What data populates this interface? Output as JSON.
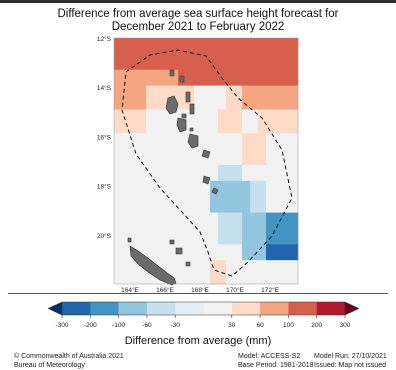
{
  "title_line1": "Difference from average sea surface height forecast for",
  "title_line2": "December 2021 to February 2022",
  "map": {
    "lat_ticks": [
      "12°S",
      "14°S",
      "16°S",
      "18°S",
      "20°S"
    ],
    "lon_ticks": [
      "164°E",
      "166°E",
      "168°E",
      "170°E",
      "172°E"
    ],
    "lon_range": [
      162.5,
      173.5
    ],
    "lat_range": [
      -12.0,
      -22.0
    ]
  },
  "colorbar": {
    "label": "Difference from average (mm)",
    "ticks": [
      "-300",
      "-200",
      "-100",
      "-60",
      "-30",
      "30",
      "60",
      "100",
      "200",
      "300"
    ],
    "colors": [
      "#2166ac",
      "#4393c3",
      "#92c5de",
      "#c6e0ef",
      "#e1eff7",
      "#f2f2f2",
      "#fddbc7",
      "#f4a582",
      "#d6604d",
      "#b2182b"
    ]
  },
  "footer": {
    "copyright": "© Commonwealth of Australia 2021",
    "bureau": "Bureau of Meteorology",
    "model": "Model: ACCESS-S2",
    "base_period": "Base Period: 1981-2018",
    "model_run": "Model Run: 27/10/2021",
    "issued": "Issued: Map not issued"
  }
}
